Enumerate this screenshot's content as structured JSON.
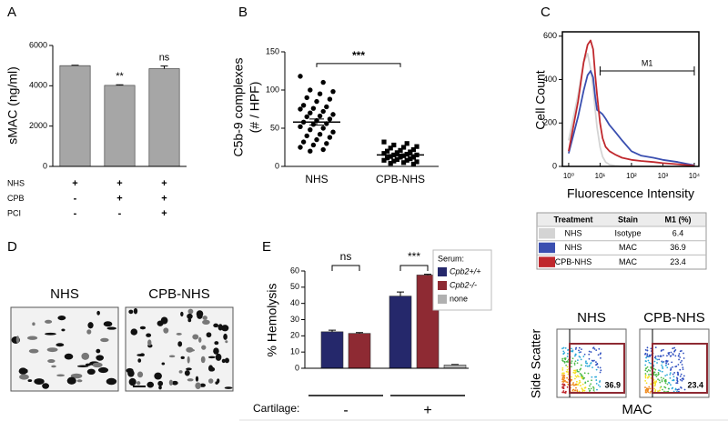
{
  "chart_data": [
    {
      "type": "bar",
      "panel": "A",
      "ylabel": "sMAC (ng/ml)",
      "ylim": [
        0,
        6000
      ],
      "yticks": [
        0,
        2000,
        4000,
        6000
      ],
      "values": [
        5000,
        4020,
        4850
      ],
      "errors": [
        20,
        30,
        130
      ],
      "color": "#a6a6a6",
      "annotations": [
        {
          "index": 1,
          "text": "**"
        },
        {
          "index": 2,
          "text": "ns"
        }
      ],
      "conditions": [
        {
          "name": "NHS",
          "signs": [
            "+",
            "+",
            "+"
          ]
        },
        {
          "name": "CPB",
          "signs": [
            "-",
            "+",
            "+"
          ]
        },
        {
          "name": "PCI",
          "signs": [
            "-",
            "-",
            "+"
          ]
        }
      ]
    },
    {
      "type": "dot",
      "panel": "B",
      "ylabel": [
        "C5b-9 complexes",
        "(# / HPF)"
      ],
      "ylim": [
        0,
        150
      ],
      "yticks": [
        0,
        50,
        100,
        150
      ],
      "categories": [
        "NHS",
        "CPB-NHS"
      ],
      "markers": [
        "circle",
        "square"
      ],
      "color": "#000000",
      "groups": [
        [
          118,
          110,
          100,
          98,
          95,
          90,
          88,
          85,
          80,
          78,
          76,
          75,
          72,
          70,
          68,
          66,
          65,
          62,
          60,
          58,
          56,
          55,
          52,
          50,
          48,
          45,
          42,
          40,
          38,
          35,
          32,
          30,
          28,
          25,
          22,
          20
        ],
        [
          32,
          30,
          28,
          26,
          25,
          24,
          22,
          21,
          20,
          19,
          18,
          17,
          16,
          15,
          15,
          14,
          13,
          12,
          12,
          11,
          10,
          9,
          8,
          8,
          7,
          6,
          5,
          4,
          3
        ]
      ],
      "means": [
        58,
        15
      ],
      "errors": [
        4,
        1.2
      ],
      "annotations": [
        {
          "text": "***"
        }
      ]
    },
    {
      "type": "line",
      "panel": "C",
      "xlabel": "Fluorescence Intensity",
      "ylabel": "Cell Count",
      "xscale": "log",
      "xlim": [
        0.63,
        14000
      ],
      "xticks": [
        {
          "value": 1,
          "label": "10⁰"
        },
        {
          "value": 10,
          "label": "10¹"
        },
        {
          "value": 100,
          "label": "10²"
        },
        {
          "value": 1000,
          "label": "10³"
        },
        {
          "value": 10000,
          "label": "10⁴"
        }
      ],
      "ylim": [
        0,
        620
      ],
      "yticks": [
        0,
        200,
        400,
        600
      ],
      "x": [
        1,
        2,
        3,
        4,
        5,
        6,
        7,
        8,
        10,
        12,
        15,
        20,
        30,
        50,
        100,
        200,
        500,
        1000,
        3000,
        10000
      ],
      "series": [
        {
          "color": "#d4d4d4",
          "values": [
            120,
            330,
            480,
            520,
            450,
            360,
            260,
            180,
            90,
            45,
            20,
            8,
            3,
            0,
            0,
            0,
            0,
            0,
            0,
            0
          ]
        },
        {
          "color": "#3a4fb0",
          "values": [
            60,
            230,
            350,
            420,
            440,
            410,
            320,
            260,
            250,
            240,
            220,
            190,
            160,
            120,
            70,
            50,
            40,
            30,
            20,
            5
          ]
        },
        {
          "color": "#c0282d",
          "values": [
            70,
            300,
            480,
            560,
            580,
            540,
            420,
            330,
            200,
            130,
            90,
            70,
            55,
            40,
            30,
            25,
            20,
            15,
            10,
            3
          ]
        }
      ],
      "gate": {
        "label": "M1",
        "range": [
          10,
          10000
        ],
        "level": 440
      }
    },
    {
      "type": "bar",
      "panel": "E",
      "ylabel": "% Hemolysis",
      "ylim": [
        0,
        60
      ],
      "yticks": [
        0,
        10,
        20,
        30,
        40,
        50,
        60
      ],
      "legend_title": "Serum:",
      "xlabel": "Cartilage:",
      "categories": [
        "-",
        "+"
      ],
      "series": [
        {
          "name": "Cpb2+/+",
          "color": "#25286b",
          "values": [
            22.5,
            44.5
          ],
          "errors": [
            1,
            2.5
          ]
        },
        {
          "name": "Cpb2-/-",
          "color": "#8e2a33",
          "values": [
            21.5,
            57.5
          ],
          "errors": [
            0.5,
            0.5
          ]
        },
        {
          "name": "none",
          "color": "#b0b0b0",
          "values": [
            null,
            2
          ],
          "errors": [
            null,
            0.3
          ]
        }
      ],
      "annotations": [
        {
          "index": 0,
          "text": "ns"
        },
        {
          "index": 1,
          "text": "***"
        }
      ]
    },
    {
      "type": "flow",
      "xlabel": "MAC",
      "ylabel": "Side Scatter",
      "plots": [
        {
          "title": "NHS",
          "value": 36.9
        },
        {
          "title": "CPB-NHS",
          "value": 23.4
        }
      ]
    }
  ],
  "table": {
    "columns": [
      "Treatment",
      "Stain",
      "M1 (%)"
    ],
    "rows": [
      [
        "NHS",
        "Isotype",
        "6.4"
      ],
      [
        "NHS",
        "MAC",
        "36.9"
      ],
      [
        "CPB-NHS",
        "MAC",
        "23.4"
      ]
    ]
  },
  "images": {
    "panel": "D",
    "labels": [
      "NHS",
      "CPB-NHS"
    ]
  }
}
